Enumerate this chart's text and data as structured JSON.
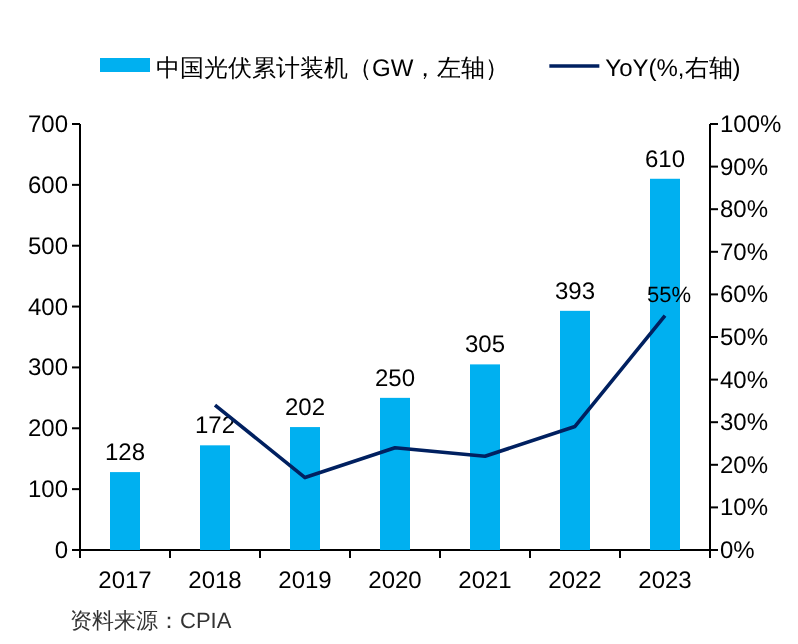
{
  "chart_data": {
    "type": "bar",
    "categories": [
      "2017",
      "2018",
      "2019",
      "2020",
      "2021",
      "2022",
      "2023"
    ],
    "series": [
      {
        "name": "中国光伏累计装机（GW，左轴）",
        "color": "#00b0f0",
        "values": [
          128,
          172,
          202,
          250,
          305,
          393,
          610
        ],
        "value_labels": [
          "128",
          "172",
          "202",
          "250",
          "305",
          "393",
          "610"
        ]
      },
      {
        "name": "YoY(%,右轴)",
        "type": "line",
        "axis": "y2",
        "color": "#002060",
        "values": [
          null,
          34,
          17,
          24,
          22,
          29,
          55
        ],
        "value_labels": [
          null,
          null,
          null,
          null,
          null,
          null,
          "55%"
        ]
      }
    ],
    "ylim": [
      0,
      700
    ],
    "yticks": [
      0,
      100,
      200,
      300,
      400,
      500,
      600,
      700
    ],
    "y2lim": [
      0,
      100
    ],
    "y2ticks": [
      {
        "value": 0,
        "label": "0%"
      },
      {
        "value": 10,
        "label": "10%"
      },
      {
        "value": 20,
        "label": "20%"
      },
      {
        "value": 30,
        "label": "30%"
      },
      {
        "value": 40,
        "label": "40%"
      },
      {
        "value": 50,
        "label": "50%"
      },
      {
        "value": 60,
        "label": "60%"
      },
      {
        "value": 70,
        "label": "70%"
      },
      {
        "value": 80,
        "label": "80%"
      },
      {
        "value": 90,
        "label": "90%"
      },
      {
        "value": 100,
        "label": "100%"
      }
    ],
    "legend": "top",
    "grid": false,
    "annotations": [
      "资料来源：CPIA"
    ]
  }
}
